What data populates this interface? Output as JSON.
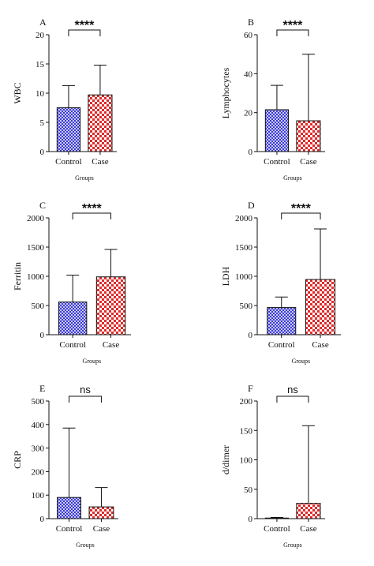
{
  "colors": {
    "control_fill": "#3b3bd6",
    "control_pattern_light": "#c9c9f2",
    "case_fill": "#e02a2a",
    "case_pattern_light": "#ffffff",
    "axis": "#111111"
  },
  "chart_data": [
    {
      "panel": "A",
      "type": "bar",
      "categories": [
        "Control",
        "Case"
      ],
      "values": [
        7.5,
        9.7
      ],
      "error_upper": [
        11.3,
        14.8
      ],
      "ylabel": "WBC",
      "xlabel": "Groups",
      "ylim": [
        0,
        20
      ],
      "yticks": [
        0,
        5,
        10,
        15,
        20
      ],
      "significance": "****"
    },
    {
      "panel": "B",
      "type": "bar",
      "categories": [
        "Control",
        "Case"
      ],
      "values": [
        21.5,
        15.8
      ],
      "error_upper": [
        34,
        50
      ],
      "ylabel": "Lymphocytes",
      "xlabel": "Groups",
      "ylim": [
        0,
        60
      ],
      "yticks": [
        0,
        20,
        40,
        60
      ],
      "significance": "****"
    },
    {
      "panel": "C",
      "type": "bar",
      "categories": [
        "Control",
        "Case"
      ],
      "values": [
        560,
        990
      ],
      "error_upper": [
        1020,
        1460
      ],
      "ylabel": "Ferritin",
      "xlabel": "Groups",
      "ylim": [
        0,
        2000
      ],
      "yticks": [
        0,
        500,
        1000,
        1500,
        2000
      ],
      "significance": "****"
    },
    {
      "panel": "D",
      "type": "bar",
      "categories": [
        "Control",
        "Case"
      ],
      "values": [
        465,
        945
      ],
      "error_upper": [
        645,
        1810
      ],
      "ylabel": "LDH",
      "xlabel": "Groups",
      "ylim": [
        0,
        2000
      ],
      "yticks": [
        0,
        500,
        1000,
        1500,
        2000
      ],
      "significance": "****"
    },
    {
      "panel": "E",
      "type": "bar",
      "categories": [
        "Control",
        "Case"
      ],
      "values": [
        90,
        50
      ],
      "error_upper": [
        385,
        132
      ],
      "ylabel": "CRP",
      "xlabel": "Groups",
      "ylim": [
        0,
        500
      ],
      "yticks": [
        0,
        100,
        200,
        300,
        400,
        500
      ],
      "significance": "ns"
    },
    {
      "panel": "F",
      "type": "bar",
      "categories": [
        "Control",
        "Case"
      ],
      "values": [
        1,
        26
      ],
      "error_upper": [
        2,
        158
      ],
      "ylabel": "d/dimer",
      "xlabel": "Groups",
      "ylim": [
        0,
        200
      ],
      "yticks": [
        0,
        50,
        100,
        150,
        200
      ],
      "significance": "ns"
    }
  ]
}
